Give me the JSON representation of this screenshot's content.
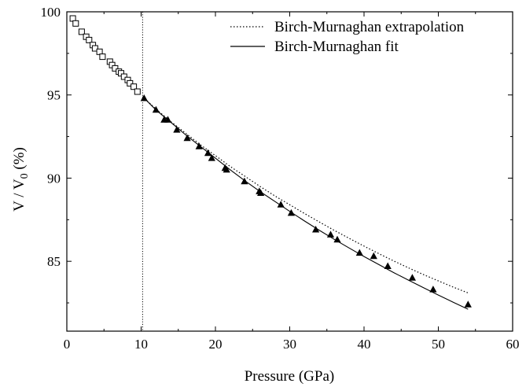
{
  "chart_data": {
    "type": "scatter",
    "title": "",
    "xlabel": "Pressure (GPa)",
    "ylabel": {
      "main": "V / V",
      "sub": "0",
      "tail": " (%)"
    },
    "xlim": [
      0,
      60
    ],
    "ylim": [
      80.8,
      100
    ],
    "xticks": [
      0,
      10,
      20,
      30,
      40,
      50,
      60
    ],
    "yticks": [
      85,
      90,
      95,
      100
    ],
    "grid": false,
    "legend_position": "top-right",
    "legend": [
      {
        "label": "Birch-Murnaghan extrapolation",
        "style": "dotted"
      },
      {
        "label": "Birch-Murnaghan fit",
        "style": "solid"
      }
    ],
    "reference_line": {
      "x": 10.2,
      "style": "dotted"
    },
    "series": [
      {
        "marker": "open-square",
        "x": [
          0.8,
          1.2,
          2.0,
          2.6,
          3.0,
          3.5,
          3.8,
          4.4,
          4.8,
          5.8,
          6.1,
          6.5,
          7.0,
          7.3,
          7.7,
          8.2,
          8.5,
          9.0,
          9.5
        ],
        "y": [
          99.6,
          99.3,
          98.8,
          98.5,
          98.3,
          98.0,
          97.8,
          97.6,
          97.3,
          97.0,
          96.8,
          96.6,
          96.4,
          96.3,
          96.1,
          95.9,
          95.7,
          95.5,
          95.2
        ]
      },
      {
        "marker": "filled-triangle",
        "x": [
          10.4,
          12.0,
          13.1,
          13.6,
          14.8,
          16.2,
          17.8,
          19.0,
          19.5,
          21.3,
          21.5,
          23.9,
          25.9,
          26.1,
          28.8,
          30.2,
          33.5,
          35.5,
          36.4,
          39.4,
          41.3,
          43.2,
          46.5,
          49.3,
          54.0
        ],
        "y": [
          94.8,
          94.1,
          93.5,
          93.5,
          92.9,
          92.4,
          91.9,
          91.5,
          91.2,
          90.6,
          90.5,
          89.8,
          89.2,
          89.1,
          88.4,
          87.9,
          86.9,
          86.6,
          86.3,
          85.5,
          85.3,
          84.7,
          84.0,
          83.3,
          82.4
        ]
      },
      {
        "name": "Birch-Murnaghan fit",
        "style": "solid",
        "x": [
          10.2,
          12,
          14,
          16,
          18,
          20,
          22,
          24,
          26,
          28,
          30,
          32,
          34,
          36,
          38,
          40,
          42,
          44,
          46,
          48,
          50,
          52,
          54
        ],
        "y": [
          94.9,
          94.1,
          93.35,
          92.6,
          91.9,
          91.2,
          90.5,
          89.83,
          89.2,
          88.6,
          88.0,
          87.42,
          86.86,
          86.32,
          85.8,
          85.29,
          84.8,
          84.32,
          83.86,
          83.41,
          82.97,
          82.54,
          82.12
        ]
      },
      {
        "name": "Birch-Murnaghan extrapolation",
        "style": "dotted",
        "x": [
          10.2,
          12,
          14,
          16,
          18,
          20,
          22,
          24,
          26,
          28,
          30,
          32,
          34,
          36,
          38,
          40,
          42,
          44,
          46,
          48,
          50,
          52,
          54
        ],
        "y": [
          94.9,
          94.15,
          93.4,
          92.7,
          92.0,
          91.35,
          90.7,
          90.1,
          89.5,
          88.93,
          88.4,
          87.87,
          87.36,
          86.86,
          86.38,
          85.91,
          85.46,
          85.02,
          84.6,
          84.2,
          83.82,
          83.45,
          83.1
        ]
      }
    ]
  }
}
